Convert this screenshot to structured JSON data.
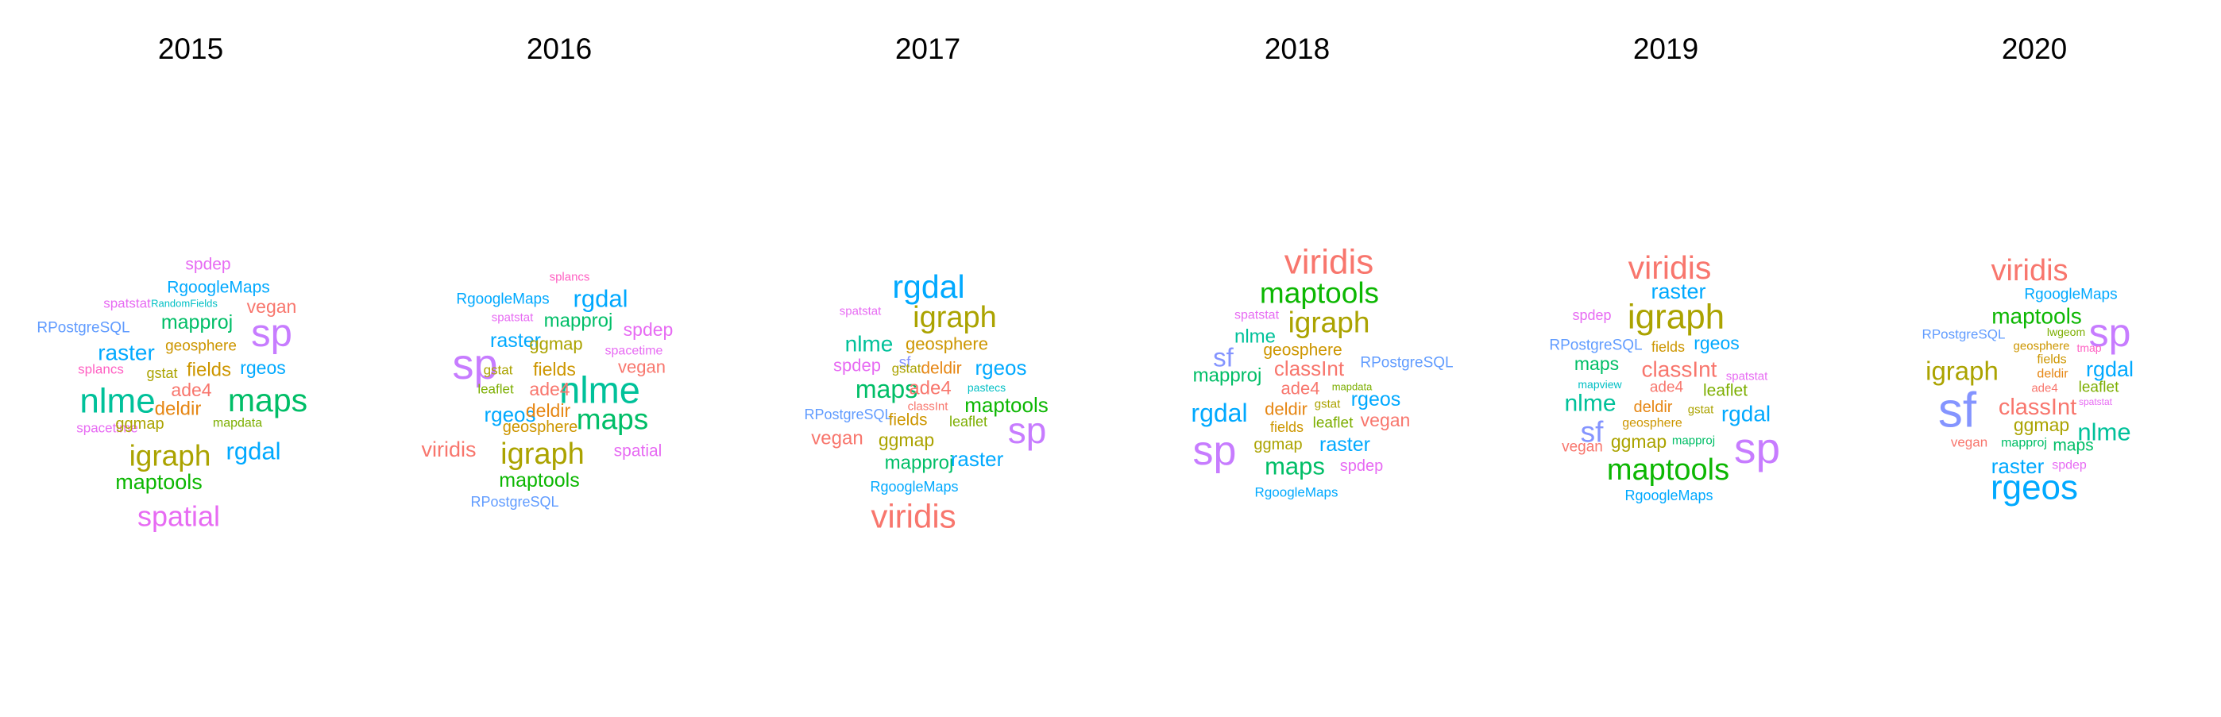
{
  "chart_data": {
    "type": "wordcloud",
    "facet_by": "year",
    "panels": [
      {
        "title": "2015",
        "words": [
          {
            "text": "spdep",
            "color": "#E76BF3"
          },
          {
            "text": "RgoogleMaps",
            "color": "#00A9FF"
          },
          {
            "text": "spatstat",
            "color": "#E76BF3"
          },
          {
            "text": "RandomFields",
            "color": "#00BFC4"
          },
          {
            "text": "vegan",
            "color": "#F8766D"
          },
          {
            "text": "sp",
            "color": "#C77CFF"
          },
          {
            "text": "RPostgreSQL",
            "color": "#619CFF"
          },
          {
            "text": "mapproj",
            "color": "#00BE67"
          },
          {
            "text": "raster",
            "color": "#00A9FF"
          },
          {
            "text": "geosphere",
            "color": "#CD9600"
          },
          {
            "text": "splancs",
            "color": "#FF61C3"
          },
          {
            "text": "gstat",
            "color": "#ABA300"
          },
          {
            "text": "fields",
            "color": "#CD9600"
          },
          {
            "text": "rgeos",
            "color": "#00A9FF"
          },
          {
            "text": "ade4",
            "color": "#F8766D"
          },
          {
            "text": "nlme",
            "color": "#00C19A"
          },
          {
            "text": "maps",
            "color": "#00BE67"
          },
          {
            "text": "deldir",
            "color": "#E68613"
          },
          {
            "text": "spacetime",
            "color": "#E76BF3"
          },
          {
            "text": "ggmap",
            "color": "#ABA300"
          },
          {
            "text": "mapdata",
            "color": "#7CAE00"
          },
          {
            "text": "igraph",
            "color": "#ABA300"
          },
          {
            "text": "rgdal",
            "color": "#00A9FF"
          },
          {
            "text": "maptools",
            "color": "#0CB702"
          },
          {
            "text": "spatial",
            "color": "#E76BF3"
          }
        ]
      },
      {
        "title": "2016",
        "words": [
          {
            "text": "splancs",
            "color": "#FF61C3"
          },
          {
            "text": "RgoogleMaps",
            "color": "#00A9FF"
          },
          {
            "text": "rgdal",
            "color": "#00A9FF"
          },
          {
            "text": "spatstat",
            "color": "#E76BF3"
          },
          {
            "text": "mapproj",
            "color": "#00BE67"
          },
          {
            "text": "spdep",
            "color": "#E76BF3"
          },
          {
            "text": "raster",
            "color": "#00A9FF"
          },
          {
            "text": "ggmap",
            "color": "#ABA300"
          },
          {
            "text": "sp",
            "color": "#C77CFF"
          },
          {
            "text": "spacetime",
            "color": "#E76BF3"
          },
          {
            "text": "gstat",
            "color": "#ABA300"
          },
          {
            "text": "fields",
            "color": "#CD9600"
          },
          {
            "text": "vegan",
            "color": "#F8766D"
          },
          {
            "text": "nlme",
            "color": "#00C19A"
          },
          {
            "text": "leaflet",
            "color": "#7CAE00"
          },
          {
            "text": "ade4",
            "color": "#F8766D"
          },
          {
            "text": "rgeos",
            "color": "#00A9FF"
          },
          {
            "text": "deldir",
            "color": "#E68613"
          },
          {
            "text": "maps",
            "color": "#00BE67"
          },
          {
            "text": "geosphere",
            "color": "#CD9600"
          },
          {
            "text": "viridis",
            "color": "#F8766D"
          },
          {
            "text": "igraph",
            "color": "#ABA300"
          },
          {
            "text": "spatial",
            "color": "#E76BF3"
          },
          {
            "text": "maptools",
            "color": "#0CB702"
          },
          {
            "text": "RPostgreSQL",
            "color": "#619CFF"
          }
        ]
      },
      {
        "title": "2017",
        "words": [
          {
            "text": "rgdal",
            "color": "#00A9FF"
          },
          {
            "text": "spatstat",
            "color": "#E76BF3"
          },
          {
            "text": "igraph",
            "color": "#ABA300"
          },
          {
            "text": "nlme",
            "color": "#00C19A"
          },
          {
            "text": "geosphere",
            "color": "#CD9600"
          },
          {
            "text": "spdep",
            "color": "#E76BF3"
          },
          {
            "text": "sf",
            "color": "#8494FF"
          },
          {
            "text": "gstat",
            "color": "#ABA300"
          },
          {
            "text": "deldir",
            "color": "#E68613"
          },
          {
            "text": "rgeos",
            "color": "#00A9FF"
          },
          {
            "text": "maps",
            "color": "#00BE67"
          },
          {
            "text": "ade4",
            "color": "#F8766D"
          },
          {
            "text": "pastecs",
            "color": "#00BFC4"
          },
          {
            "text": "classInt",
            "color": "#F8766D"
          },
          {
            "text": "maptools",
            "color": "#0CB702"
          },
          {
            "text": "RPostgreSQL",
            "color": "#619CFF"
          },
          {
            "text": "fields",
            "color": "#CD9600"
          },
          {
            "text": "leaflet",
            "color": "#7CAE00"
          },
          {
            "text": "sp",
            "color": "#C77CFF"
          },
          {
            "text": "vegan",
            "color": "#F8766D"
          },
          {
            "text": "ggmap",
            "color": "#ABA300"
          },
          {
            "text": "mapproj",
            "color": "#00BE67"
          },
          {
            "text": "raster",
            "color": "#00A9FF"
          },
          {
            "text": "RgoogleMaps",
            "color": "#00A9FF"
          },
          {
            "text": "viridis",
            "color": "#F8766D"
          }
        ]
      },
      {
        "title": "2018",
        "words": [
          {
            "text": "viridis",
            "color": "#F8766D"
          },
          {
            "text": "maptools",
            "color": "#0CB702"
          },
          {
            "text": "spatstat",
            "color": "#E76BF3"
          },
          {
            "text": "igraph",
            "color": "#ABA300"
          },
          {
            "text": "nlme",
            "color": "#00C19A"
          },
          {
            "text": "sf",
            "color": "#8494FF"
          },
          {
            "text": "geosphere",
            "color": "#CD9600"
          },
          {
            "text": "RPostgreSQL",
            "color": "#619CFF"
          },
          {
            "text": "mapproj",
            "color": "#00BE67"
          },
          {
            "text": "classInt",
            "color": "#F8766D"
          },
          {
            "text": "ade4",
            "color": "#F8766D"
          },
          {
            "text": "mapdata",
            "color": "#7CAE00"
          },
          {
            "text": "rgeos",
            "color": "#00A9FF"
          },
          {
            "text": "rgdal",
            "color": "#00A9FF"
          },
          {
            "text": "deldir",
            "color": "#E68613"
          },
          {
            "text": "gstat",
            "color": "#ABA300"
          },
          {
            "text": "fields",
            "color": "#CD9600"
          },
          {
            "text": "leaflet",
            "color": "#7CAE00"
          },
          {
            "text": "vegan",
            "color": "#F8766D"
          },
          {
            "text": "sp",
            "color": "#C77CFF"
          },
          {
            "text": "ggmap",
            "color": "#ABA300"
          },
          {
            "text": "raster",
            "color": "#00A9FF"
          },
          {
            "text": "maps",
            "color": "#00BE67"
          },
          {
            "text": "spdep",
            "color": "#E76BF3"
          },
          {
            "text": "RgoogleMaps",
            "color": "#00A9FF"
          }
        ]
      },
      {
        "title": "2019",
        "words": [
          {
            "text": "viridis",
            "color": "#F8766D"
          },
          {
            "text": "raster",
            "color": "#00A9FF"
          },
          {
            "text": "spdep",
            "color": "#E76BF3"
          },
          {
            "text": "igraph",
            "color": "#ABA300"
          },
          {
            "text": "RPostgreSQL",
            "color": "#619CFF"
          },
          {
            "text": "fields",
            "color": "#CD9600"
          },
          {
            "text": "rgeos",
            "color": "#00A9FF"
          },
          {
            "text": "maps",
            "color": "#00BE67"
          },
          {
            "text": "classInt",
            "color": "#F8766D"
          },
          {
            "text": "spatstat",
            "color": "#E76BF3"
          },
          {
            "text": "mapview",
            "color": "#00BFC4"
          },
          {
            "text": "ade4",
            "color": "#F8766D"
          },
          {
            "text": "leaflet",
            "color": "#7CAE00"
          },
          {
            "text": "nlme",
            "color": "#00C19A"
          },
          {
            "text": "deldir",
            "color": "#E68613"
          },
          {
            "text": "gstat",
            "color": "#ABA300"
          },
          {
            "text": "rgdal",
            "color": "#00A9FF"
          },
          {
            "text": "sf",
            "color": "#8494FF"
          },
          {
            "text": "geosphere",
            "color": "#CD9600"
          },
          {
            "text": "vegan",
            "color": "#F8766D"
          },
          {
            "text": "ggmap",
            "color": "#ABA300"
          },
          {
            "text": "mapproj",
            "color": "#00BE67"
          },
          {
            "text": "sp",
            "color": "#C77CFF"
          },
          {
            "text": "maptools",
            "color": "#0CB702"
          },
          {
            "text": "RgoogleMaps",
            "color": "#00A9FF"
          }
        ]
      },
      {
        "title": "2020",
        "words": [
          {
            "text": "viridis",
            "color": "#F8766D"
          },
          {
            "text": "RgoogleMaps",
            "color": "#00A9FF"
          },
          {
            "text": "maptools",
            "color": "#0CB702"
          },
          {
            "text": "RPostgreSQL",
            "color": "#619CFF"
          },
          {
            "text": "lwgeom",
            "color": "#7CAE00"
          },
          {
            "text": "sp",
            "color": "#C77CFF"
          },
          {
            "text": "geosphere",
            "color": "#CD9600"
          },
          {
            "text": "tmap",
            "color": "#FF61C3"
          },
          {
            "text": "fields",
            "color": "#CD9600"
          },
          {
            "text": "igraph",
            "color": "#ABA300"
          },
          {
            "text": "deldir",
            "color": "#E68613"
          },
          {
            "text": "rgdal",
            "color": "#00A9FF"
          },
          {
            "text": "ade4",
            "color": "#F8766D"
          },
          {
            "text": "leaflet",
            "color": "#7CAE00"
          },
          {
            "text": "sf",
            "color": "#8494FF"
          },
          {
            "text": "classInt",
            "color": "#F8766D"
          },
          {
            "text": "spatstat",
            "color": "#E76BF3"
          },
          {
            "text": "ggmap",
            "color": "#ABA300"
          },
          {
            "text": "nlme",
            "color": "#00C19A"
          },
          {
            "text": "vegan",
            "color": "#F8766D"
          },
          {
            "text": "mapproj",
            "color": "#00BE67"
          },
          {
            "text": "maps",
            "color": "#00BE67"
          },
          {
            "text": "raster",
            "color": "#00A9FF"
          },
          {
            "text": "spdep",
            "color": "#E76BF3"
          },
          {
            "text": "rgeos",
            "color": "#00A9FF"
          }
        ]
      }
    ]
  }
}
